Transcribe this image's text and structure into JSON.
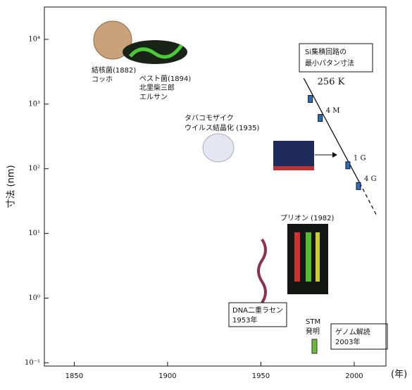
{
  "chart_data": {
    "type": "line",
    "y_label": "寸法 (nm)",
    "x_label": "(年)",
    "log_y": true,
    "xlim": [
      1834,
      2017
    ],
    "ylim": [
      0.089,
      31623
    ],
    "xticks": [
      1850,
      1900,
      1950,
      2000
    ],
    "yticks": [
      {
        "value": 0.1,
        "label": "10⁻¹"
      },
      {
        "value": 1,
        "label": "10⁰"
      },
      {
        "value": 10,
        "label": "10¹"
      },
      {
        "value": 100,
        "label": "10²"
      },
      {
        "value": 1000,
        "label": "10³"
      },
      {
        "value": 10000,
        "label": "10⁴"
      }
    ],
    "x": [
      1976.5,
      1981.8,
      1996.6,
      2002.3
    ],
    "values": [
      1200,
      610,
      113,
      54
    ],
    "value_labels": [
      "256 K",
      "4 M",
      "1 G",
      "4 G"
    ],
    "color": "#2a6fb0",
    "trend_x": [
      1973,
      2003
    ],
    "trend_values": [
      2500,
      60
    ],
    "trend_dashed_x": [
      2003,
      2012
    ],
    "trend_dashed_values": [
      60,
      19
    ],
    "annotations": {
      "si": [
        "Si集積回路の",
        "最小パタン寸法"
      ],
      "tb": [
        "結核菌(1882)",
        "コッホ"
      ],
      "pest": [
        "ペスト菌(1894)",
        "北里柴三郎",
        "エルサン"
      ],
      "tmv": [
        "タバコモザイク",
        "ウイルス結晶化 (1935)"
      ],
      "prion": "プリオン (1982)",
      "dna": [
        "DNA二重ラセン",
        "1953年"
      ],
      "stm": [
        "STM",
        "発明"
      ],
      "genome": [
        "ゲノム解読",
        "2003年"
      ]
    }
  }
}
